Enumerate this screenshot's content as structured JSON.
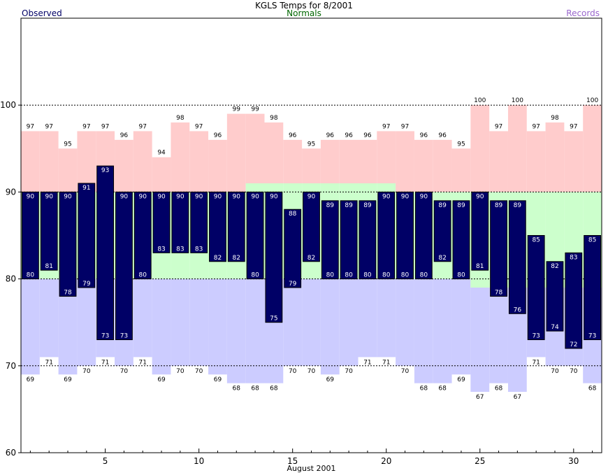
{
  "chart_data": {
    "type": "bar",
    "title": "KGLS Temps for 8/2001",
    "xlabel": "August 2001",
    "ylabel": "",
    "ylim": [
      60,
      110
    ],
    "xlim": [
      0.5,
      31.5
    ],
    "yticks": [
      60,
      70,
      80,
      90,
      100
    ],
    "xticks": [
      5,
      10,
      15,
      20,
      25,
      30
    ],
    "legend": [
      "Observed",
      "Normals",
      "Records"
    ],
    "legend_placement": "top",
    "days": [
      1,
      2,
      3,
      4,
      5,
      6,
      7,
      8,
      9,
      10,
      11,
      12,
      13,
      14,
      15,
      16,
      17,
      18,
      19,
      20,
      21,
      22,
      23,
      24,
      25,
      26,
      27,
      28,
      29,
      30,
      31
    ],
    "series": [
      {
        "name": "Observed",
        "kind": "high",
        "values": [
          90,
          90,
          90,
          91,
          93,
          90,
          90,
          90,
          90,
          90,
          90,
          90,
          90,
          90,
          88,
          90,
          89,
          89,
          89,
          90,
          90,
          90,
          89,
          89,
          90,
          89,
          89,
          85,
          82,
          83,
          85
        ]
      },
      {
        "name": "Observed",
        "kind": "low",
        "values": [
          80,
          81,
          78,
          79,
          73,
          73,
          80,
          83,
          83,
          83,
          82,
          82,
          80,
          75,
          79,
          82,
          80,
          80,
          80,
          80,
          80,
          80,
          82,
          80,
          81,
          78,
          76,
          73,
          74,
          72,
          73
        ]
      },
      {
        "name": "Normals",
        "kind": "high",
        "values": [
          90,
          90,
          90,
          90,
          90,
          90,
          90,
          90,
          90,
          90,
          90,
          90,
          91,
          91,
          91,
          91,
          91,
          91,
          91,
          91,
          90,
          90,
          90,
          90,
          90,
          90,
          90,
          90,
          90,
          90,
          90
        ]
      },
      {
        "name": "Normals",
        "kind": "low",
        "values": [
          80,
          80,
          80,
          80,
          80,
          80,
          80,
          80,
          80,
          80,
          80,
          80,
          80,
          80,
          80,
          80,
          80,
          80,
          80,
          80,
          80,
          80,
          80,
          80,
          79,
          79,
          79,
          79,
          79,
          79,
          79
        ]
      },
      {
        "name": "Records",
        "kind": "high",
        "values": [
          97,
          97,
          95,
          97,
          97,
          96,
          97,
          94,
          98,
          97,
          96,
          99,
          99,
          98,
          96,
          95,
          96,
          96,
          96,
          97,
          97,
          96,
          96,
          95,
          100,
          97,
          100,
          97,
          98,
          97,
          100
        ]
      },
      {
        "name": "Records",
        "kind": "low",
        "values": [
          69,
          71,
          69,
          70,
          71,
          70,
          71,
          69,
          70,
          70,
          69,
          68,
          68,
          68,
          70,
          70,
          69,
          70,
          71,
          71,
          70,
          68,
          68,
          69,
          67,
          68,
          67,
          71,
          70,
          70,
          68
        ]
      }
    ],
    "grid": "dashed at 70, 80, 90, 100",
    "colors": {
      "observed": "#000066",
      "normals_legend": "#006600",
      "records_legend": "#9966cc",
      "normal_band": "#ccffcc",
      "record_high_band": "#ffcccc",
      "record_low_band": "#ccccff",
      "label_on_bar": "#ffffff",
      "label_off_bar": "#000000"
    }
  }
}
